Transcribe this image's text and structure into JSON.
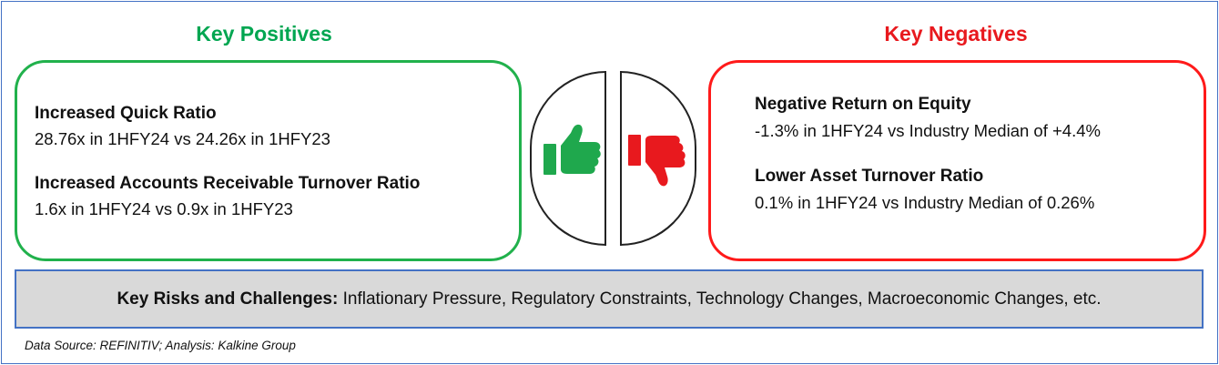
{
  "positives": {
    "heading": "Key Positives",
    "items": [
      {
        "title": "Increased Quick Ratio",
        "detail": "28.76x in 1HFY24 vs 24.26x in 1HFY23"
      },
      {
        "title": "Increased Accounts Receivable Turnover Ratio",
        "detail": "1.6x in 1HFY24 vs 0.9x in 1HFY23"
      }
    ]
  },
  "negatives": {
    "heading": "Key Negatives",
    "items": [
      {
        "title": "Negative Return on Equity",
        "detail": "-1.3% in 1HFY24 vs Industry Median of +4.4%"
      },
      {
        "title": "Lower Asset Turnover Ratio",
        "detail": "0.1% in 1HFY24 vs Industry Median of 0.26%"
      }
    ]
  },
  "icons": {
    "thumbs_up": "thumbs-up-icon",
    "thumbs_down": "thumbs-down-icon"
  },
  "risks": {
    "label": "Key Risks and Challenges:",
    "text": " Inflationary Pressure, Regulatory Constraints, Technology Changes, Macroeconomic Changes, etc."
  },
  "source": "Data Source: REFINITIV; Analysis: Kalkine Group",
  "colors": {
    "positive": "#21b14c",
    "negative": "#ff1a1a",
    "frame": "#4472c4",
    "risk_bg": "#d9d9d9"
  }
}
